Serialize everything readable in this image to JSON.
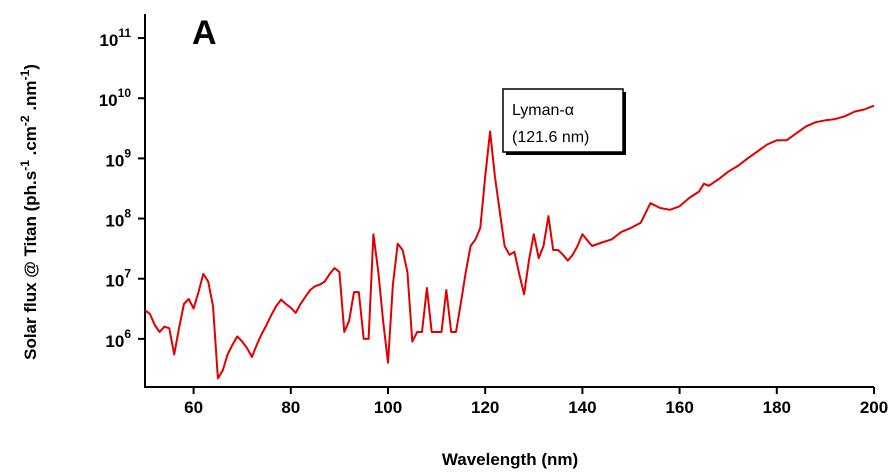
{
  "chart_data": {
    "type": "line",
    "panel_label": "A",
    "xlabel": "Wavelength (nm)",
    "ylabel": "Solar flux @ Titan (ph.s",
    "ylabel_sup1": "-1",
    "ylabel_mid": " .cm",
    "ylabel_sup2": "-2",
    "ylabel_mid2": " .nm",
    "ylabel_sup3": "-1",
    "ylabel_end": ")",
    "xlim": [
      50,
      200
    ],
    "ylim_log10": [
      5.2,
      11.4
    ],
    "y_scale": "log",
    "x_ticks": [
      60,
      80,
      100,
      120,
      140,
      160,
      180,
      200
    ],
    "y_ticks": [
      {
        "base": "10",
        "exp": "6",
        "log": 6
      },
      {
        "base": "10",
        "exp": "7",
        "log": 7
      },
      {
        "base": "10",
        "exp": "8",
        "log": 8
      },
      {
        "base": "10",
        "exp": "9",
        "log": 9
      },
      {
        "base": "10",
        "exp": "10",
        "log": 10
      },
      {
        "base": "10",
        "exp": "11",
        "log": 11
      }
    ],
    "annotation": {
      "line1": "Lyman-α",
      "line2": "(121.6 nm)"
    },
    "line_color": "#e00000",
    "series": [
      {
        "x": [
          50,
          51,
          52,
          53,
          54,
          55,
          56,
          57,
          58,
          59,
          60,
          61,
          62,
          63,
          64,
          65,
          66,
          67,
          68,
          69,
          70,
          71,
          72,
          73,
          74,
          75,
          76,
          77,
          78,
          79,
          80,
          81,
          82,
          83,
          84,
          85,
          86,
          87,
          88,
          89,
          90,
          91,
          92,
          93,
          94,
          95,
          96,
          97,
          98,
          99,
          100,
          101,
          102,
          103,
          104,
          105,
          106,
          107,
          108,
          109,
          110,
          111,
          112,
          113,
          114,
          115,
          116,
          117,
          118,
          119,
          120,
          121,
          122,
          123,
          124,
          125,
          126,
          127,
          128,
          129,
          130,
          131,
          132,
          133,
          134,
          135,
          136,
          137,
          138,
          139,
          140,
          142,
          144,
          146,
          148,
          150,
          152,
          154,
          156,
          158,
          160,
          162,
          164,
          165,
          166,
          168,
          170,
          172,
          174,
          176,
          178,
          180,
          182,
          184,
          186,
          188,
          190,
          192,
          194,
          196,
          198,
          200
        ],
        "y": [
          3000000.0,
          2600000.0,
          1700000.0,
          1300000.0,
          1600000.0,
          1500000.0,
          550000.0,
          1500000.0,
          3800000.0,
          4600000.0,
          3200000.0,
          6000000.0,
          12000000.0,
          9000000.0,
          3500000.0,
          220000.0,
          300000.0,
          550000.0,
          800000.0,
          1100000.0,
          900000.0,
          700000.0,
          500000.0,
          800000.0,
          1200000.0,
          1700000.0,
          2500000.0,
          3500000.0,
          4500000.0,
          3800000.0,
          3300000.0,
          2700000.0,
          3800000.0,
          5000000.0,
          6500000.0,
          7500000.0,
          8000000.0,
          9000000.0,
          12000000.0,
          15000000.0,
          13000000.0,
          1300000.0,
          2000000.0,
          6000000.0,
          6000000.0,
          1000000.0,
          1000000.0,
          55000000.0,
          13000000.0,
          2000000.0,
          400000.0,
          8000000.0,
          38000000.0,
          30000000.0,
          13000000.0,
          900000.0,
          1300000.0,
          1300000.0,
          7000000.0,
          1300000.0,
          1300000.0,
          1300000.0,
          6500000.0,
          1300000.0,
          1300000.0,
          4000000.0,
          13000000.0,
          35000000.0,
          45000000.0,
          70000000.0,
          500000000.0,
          2800000000.0,
          500000000.0,
          130000000.0,
          35000000.0,
          25000000.0,
          28000000.0,
          12000000.0,
          5500000.0,
          20000000.0,
          55000000.0,
          22000000.0,
          35000000.0,
          110000000.0,
          30000000.0,
          30000000.0,
          25000000.0,
          20000000.0,
          25000000.0,
          35000000.0,
          55000000.0,
          35000000.0,
          40000000.0,
          45000000.0,
          60000000.0,
          70000000.0,
          85000000.0,
          180000000.0,
          150000000.0,
          140000000.0,
          160000000.0,
          220000000.0,
          280000000.0,
          380000000.0,
          350000000.0,
          450000000.0,
          600000000.0,
          750000000.0,
          1000000000.0,
          1300000000.0,
          1700000000.0,
          2000000000.0,
          2000000000.0,
          2600000000.0,
          3400000000.0,
          4000000000.0,
          4300000000.0,
          4500000000.0,
          5000000000.0,
          6000000000.0,
          6500000000.0,
          7500000000.0
        ]
      }
    ]
  }
}
